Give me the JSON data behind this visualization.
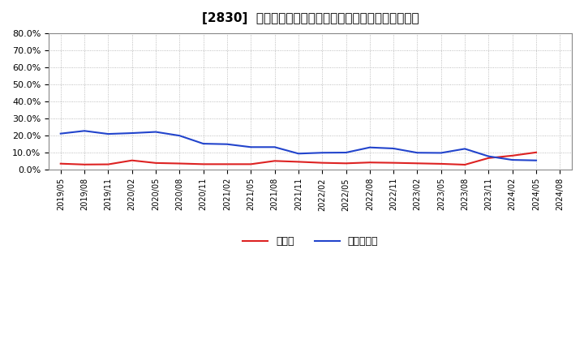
{
  "title": "[2830]  現頲金、有利子負偉の総資産に対する比率の推移",
  "x_labels": [
    "2019/05",
    "2019/08",
    "2019/11",
    "2020/02",
    "2020/05",
    "2020/08",
    "2020/11",
    "2021/02",
    "2021/05",
    "2021/08",
    "2021/11",
    "2022/02",
    "2022/05",
    "2022/08",
    "2022/11",
    "2023/02",
    "2023/05",
    "2023/08",
    "2023/11",
    "2024/02",
    "2024/05",
    "2024/08"
  ],
  "cash_values": [
    0.036,
    0.031,
    0.032,
    0.055,
    0.04,
    0.037,
    0.033,
    0.033,
    0.033,
    0.052,
    0.047,
    0.041,
    0.038,
    0.043,
    0.041,
    0.038,
    0.035,
    0.03,
    0.069,
    0.083,
    0.102,
    null
  ],
  "debt_values": [
    0.212,
    0.228,
    0.21,
    0.215,
    0.222,
    0.2,
    0.153,
    0.15,
    0.133,
    0.133,
    0.095,
    0.1,
    0.101,
    0.131,
    0.125,
    0.1,
    0.099,
    0.123,
    0.079,
    0.058,
    0.055,
    null
  ],
  "cash_color": "#dd2222",
  "debt_color": "#2244cc",
  "legend_cash": "現頲金",
  "legend_debt": "有利子負偉",
  "background_color": "#ffffff",
  "grid_color": "#aaaaaa",
  "yticks": [
    0.0,
    0.1,
    0.2,
    0.3,
    0.4,
    0.5,
    0.6,
    0.7,
    0.8
  ],
  "ytick_labels": [
    "0.0%",
    "10.0%",
    "20.0%",
    "30.0%",
    "40.0%",
    "50.0%",
    "60.0%",
    "70.0%",
    "80.0%"
  ],
  "ylim": [
    0.0,
    0.8
  ],
  "title_fontsize": 11,
  "tick_fontsize": 8,
  "legend_fontsize": 9
}
